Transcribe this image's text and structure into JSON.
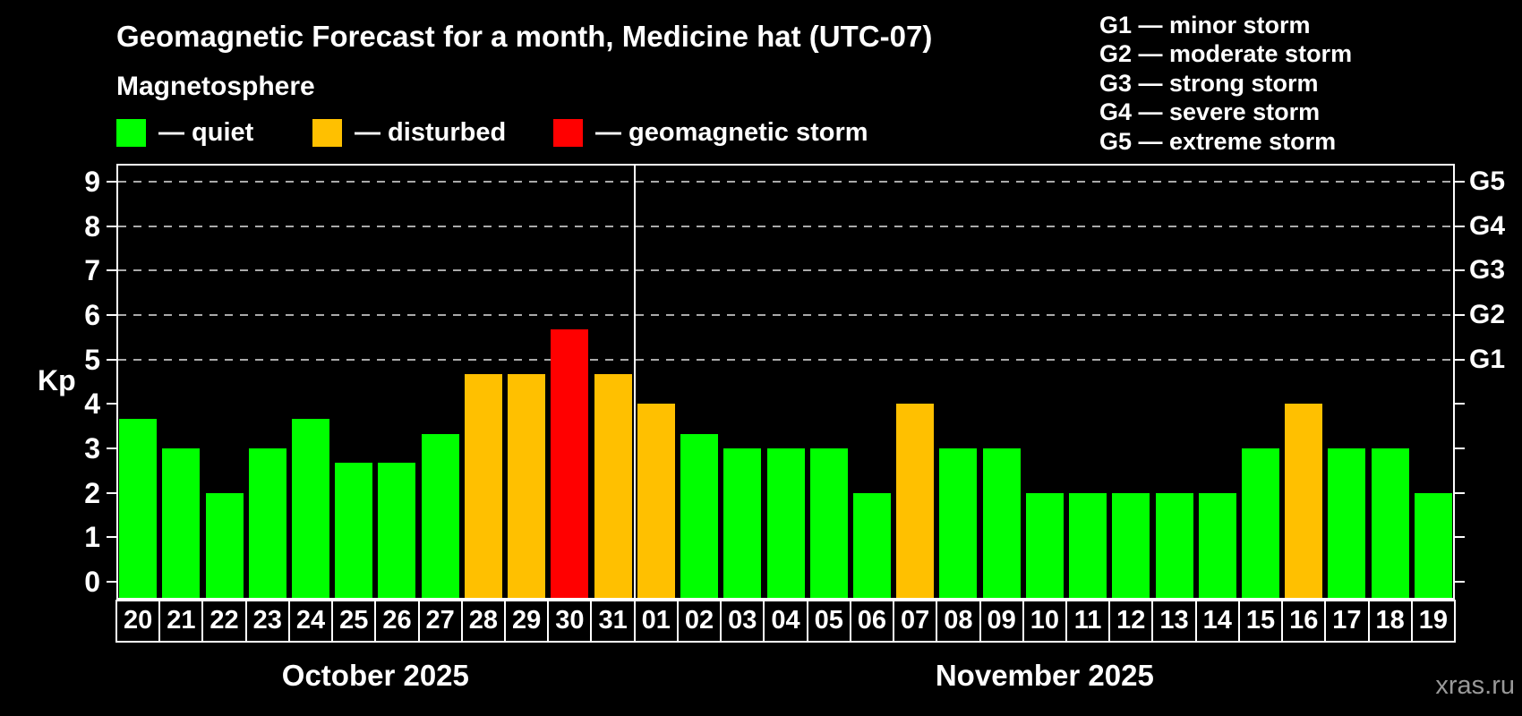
{
  "header": {
    "title": "Geomagnetic Forecast for a month, Medicine hat (UTC-07)",
    "subtitle": "Magnetosphere"
  },
  "legend": {
    "items": [
      {
        "name": "quiet",
        "label": "— quiet",
        "color": "#00ff00"
      },
      {
        "name": "disturbed",
        "label": "— disturbed",
        "color": "#ffc000"
      },
      {
        "name": "geomagnetic-storm",
        "label": "— geomagnetic storm",
        "color": "#ff0000"
      }
    ]
  },
  "g_legend": {
    "lines": [
      "G1 — minor storm",
      "G2 — moderate storm",
      "G3 — strong storm",
      "G4 — severe storm",
      "G5 — extreme storm"
    ]
  },
  "chart_data": {
    "type": "bar",
    "title": "Geomagnetic Forecast for a month, Medicine hat (UTC-07)",
    "ylabel": "Kp",
    "ylim": [
      0,
      9
    ],
    "y_ticks": [
      0,
      1,
      2,
      3,
      4,
      5,
      6,
      7,
      8,
      9
    ],
    "gridlines_at": [
      5,
      6,
      7,
      8,
      9
    ],
    "grid": "dashed, only at storm levels G1–G5",
    "right_axis_labels": [
      {
        "kp": 5,
        "label": "G1"
      },
      {
        "kp": 6,
        "label": "G2"
      },
      {
        "kp": 7,
        "label": "G3"
      },
      {
        "kp": 8,
        "label": "G4"
      },
      {
        "kp": 9,
        "label": "G5"
      }
    ],
    "categories": [
      "20",
      "21",
      "22",
      "23",
      "24",
      "25",
      "26",
      "27",
      "28",
      "29",
      "30",
      "31",
      "01",
      "02",
      "03",
      "04",
      "05",
      "06",
      "07",
      "08",
      "09",
      "10",
      "11",
      "12",
      "13",
      "14",
      "15",
      "16",
      "17",
      "18",
      "19"
    ],
    "values": [
      3.67,
      3,
      2,
      3,
      3.67,
      2.67,
      2.67,
      3.33,
      4.67,
      4.67,
      5.67,
      4.67,
      4,
      3.33,
      3,
      3,
      3,
      2,
      4,
      3,
      3,
      2,
      2,
      2,
      2,
      2,
      3,
      4,
      3,
      3,
      2
    ],
    "status": [
      "quiet",
      "quiet",
      "quiet",
      "quiet",
      "quiet",
      "quiet",
      "quiet",
      "quiet",
      "disturbed",
      "disturbed",
      "storm",
      "disturbed",
      "disturbed",
      "quiet",
      "quiet",
      "quiet",
      "quiet",
      "quiet",
      "disturbed",
      "quiet",
      "quiet",
      "quiet",
      "quiet",
      "quiet",
      "quiet",
      "quiet",
      "quiet",
      "disturbed",
      "quiet",
      "quiet",
      "quiet"
    ],
    "colors": {
      "quiet": "#00ff00",
      "disturbed": "#ffc000",
      "storm": "#ff0000"
    },
    "months": [
      {
        "label": "October 2025",
        "days": 12
      },
      {
        "label": "November 2025",
        "days": 19
      }
    ]
  },
  "watermark": "xras.ru"
}
